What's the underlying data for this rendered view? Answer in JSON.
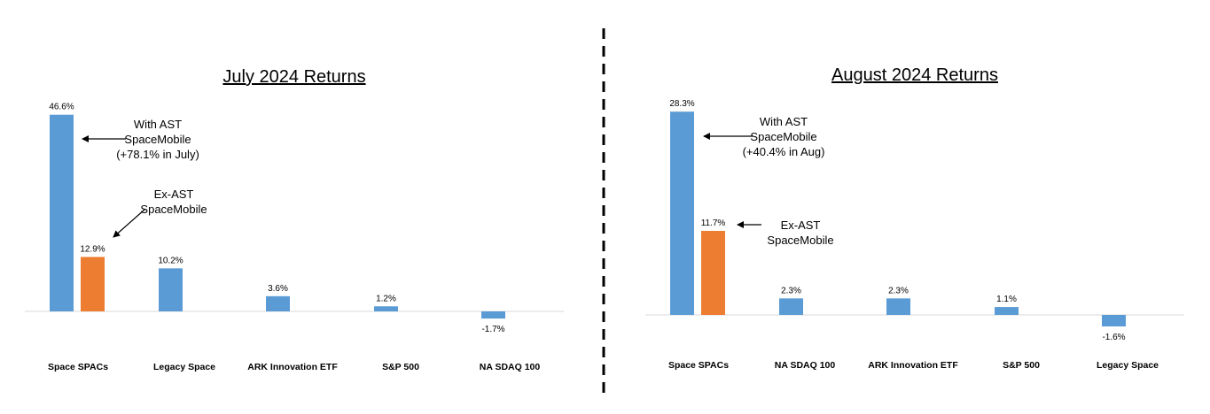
{
  "colors": {
    "blue": "#5B9BD5",
    "orange": "#ED7D31",
    "divider": "#000000",
    "axis": "#D9D9D9"
  },
  "chart_data": [
    {
      "type": "bar",
      "title": "July 2024 Returns",
      "categories": [
        "Space SPACs",
        "Legacy Space",
        "ARK Innovation ETF",
        "S&P 500",
        "NA SDAQ 100"
      ],
      "series": [
        {
          "color": "#5B9BD5",
          "values": [
            46.6,
            10.2,
            3.6,
            1.2,
            -1.7
          ],
          "labels": [
            "46.6%",
            "10.2%",
            "3.6%",
            "1.2%",
            "-1.7%"
          ]
        },
        {
          "color": "#ED7D31",
          "values": [
            12.9,
            null,
            null,
            null,
            null
          ],
          "labels": [
            "12.9%",
            "",
            "",
            "",
            ""
          ]
        }
      ],
      "annotations": [
        {
          "lines": [
            "With AST",
            "SpaceMobile",
            "(+78.1% in July)"
          ]
        },
        {
          "lines": [
            "Ex-AST",
            "SpaceMobile"
          ]
        }
      ],
      "ylim": [
        -5,
        50
      ]
    },
    {
      "type": "bar",
      "title": "August 2024 Returns",
      "categories": [
        "Space SPACs",
        "NA SDAQ 100",
        "ARK Innovation ETF",
        "S&P 500",
        "Legacy Space"
      ],
      "series": [
        {
          "color": "#5B9BD5",
          "values": [
            28.3,
            2.3,
            2.3,
            1.1,
            -1.6
          ],
          "labels": [
            "28.3%",
            "2.3%",
            "2.3%",
            "1.1%",
            "-1.6%"
          ]
        },
        {
          "color": "#ED7D31",
          "values": [
            11.7,
            null,
            null,
            null,
            null
          ],
          "labels": [
            "11.7%",
            "",
            "",
            "",
            ""
          ]
        }
      ],
      "annotations": [
        {
          "lines": [
            "With AST",
            "SpaceMobile",
            "(+40.4% in Aug)"
          ]
        },
        {
          "lines": [
            "Ex-AST",
            "SpaceMobile"
          ]
        }
      ],
      "ylim": [
        -3,
        30
      ]
    }
  ]
}
